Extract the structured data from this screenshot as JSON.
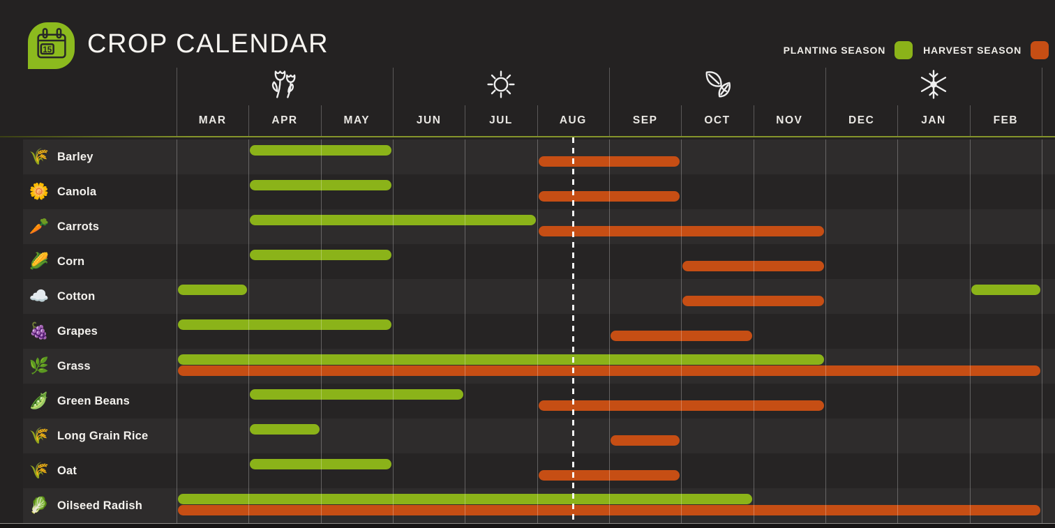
{
  "header": {
    "title": "CROP CALENDAR",
    "calendar_day": "15"
  },
  "legend": {
    "planting_label": "PLANTING SEASON",
    "harvest_label": "HARVEST SEASON"
  },
  "colors": {
    "background": "#242222",
    "planting": "#8BB319",
    "harvest": "#C64E14",
    "header_underline": "#85952B",
    "icon_badge": "#8CBA1E",
    "row_light": "#2E2C2C",
    "row_dark": "#262424",
    "grid_line": "rgba(255,255,255,0.28)",
    "today_line": "#FFFFFF"
  },
  "chart_data": {
    "type": "gantt",
    "title": "CROP CALENDAR",
    "months": [
      "MAR",
      "APR",
      "MAY",
      "JUN",
      "JUL",
      "AUG",
      "SEP",
      "OCT",
      "NOV",
      "DEC",
      "JAN",
      "FEB"
    ],
    "seasons": [
      {
        "name": "spring",
        "icon": "tulips",
        "months": [
          "MAR",
          "APR",
          "MAY"
        ]
      },
      {
        "name": "summer",
        "icon": "sun",
        "months": [
          "JUN",
          "JUL",
          "AUG"
        ]
      },
      {
        "name": "autumn",
        "icon": "leaves",
        "months": [
          "SEP",
          "OCT",
          "NOV"
        ]
      },
      {
        "name": "winter",
        "icon": "snowflake",
        "months": [
          "DEC",
          "JAN",
          "FEB"
        ]
      }
    ],
    "legend_entries": [
      {
        "name": "PLANTING SEASON",
        "color": "#8BB319"
      },
      {
        "name": "HARVEST SEASON",
        "color": "#C64E14"
      }
    ],
    "today_marker": {
      "month": "AUG",
      "day": 15
    },
    "crops": [
      {
        "name": "Barley",
        "icon_char": "🌾",
        "planting": [
          [
            "APR",
            "MAY"
          ]
        ],
        "harvest": [
          [
            "AUG",
            "SEP"
          ]
        ]
      },
      {
        "name": "Canola",
        "icon_char": "🌼",
        "planting": [
          [
            "APR",
            "MAY"
          ]
        ],
        "harvest": [
          [
            "AUG",
            "SEP"
          ]
        ]
      },
      {
        "name": "Carrots",
        "icon_char": "🥕",
        "planting": [
          [
            "APR",
            "JUL"
          ]
        ],
        "harvest": [
          [
            "AUG",
            "NOV"
          ]
        ]
      },
      {
        "name": "Corn",
        "icon_char": "🌽",
        "planting": [
          [
            "APR",
            "MAY"
          ]
        ],
        "harvest": [
          [
            "OCT",
            "NOV"
          ]
        ]
      },
      {
        "name": "Cotton",
        "icon_char": "☁️",
        "planting": [
          [
            "MAR",
            "MAR"
          ],
          [
            "FEB",
            "FEB"
          ]
        ],
        "harvest": [
          [
            "OCT",
            "NOV"
          ]
        ]
      },
      {
        "name": "Grapes",
        "icon_char": "🍇",
        "planting": [
          [
            "MAR",
            "MAY"
          ]
        ],
        "harvest": [
          [
            "SEP",
            "OCT"
          ]
        ]
      },
      {
        "name": "Grass",
        "icon_char": "🌿",
        "planting": [
          [
            "MAR",
            "NOV"
          ]
        ],
        "harvest": [
          [
            "MAR",
            "FEB"
          ]
        ]
      },
      {
        "name": "Green Beans",
        "icon_char": "🫛",
        "planting": [
          [
            "APR",
            "JUN"
          ]
        ],
        "harvest": [
          [
            "AUG",
            "NOV"
          ]
        ]
      },
      {
        "name": "Long Grain Rice",
        "icon_char": "🌾",
        "planting": [
          [
            "APR",
            "APR"
          ]
        ],
        "harvest": [
          [
            "SEP",
            "SEP"
          ]
        ]
      },
      {
        "name": "Oat",
        "icon_char": "🌾",
        "planting": [
          [
            "APR",
            "MAY"
          ]
        ],
        "harvest": [
          [
            "AUG",
            "SEP"
          ]
        ]
      },
      {
        "name": "Oilseed Radish",
        "icon_char": "🥬",
        "planting": [
          [
            "MAR",
            "OCT"
          ]
        ],
        "harvest": [
          [
            "MAR",
            "FEB"
          ]
        ]
      }
    ]
  }
}
